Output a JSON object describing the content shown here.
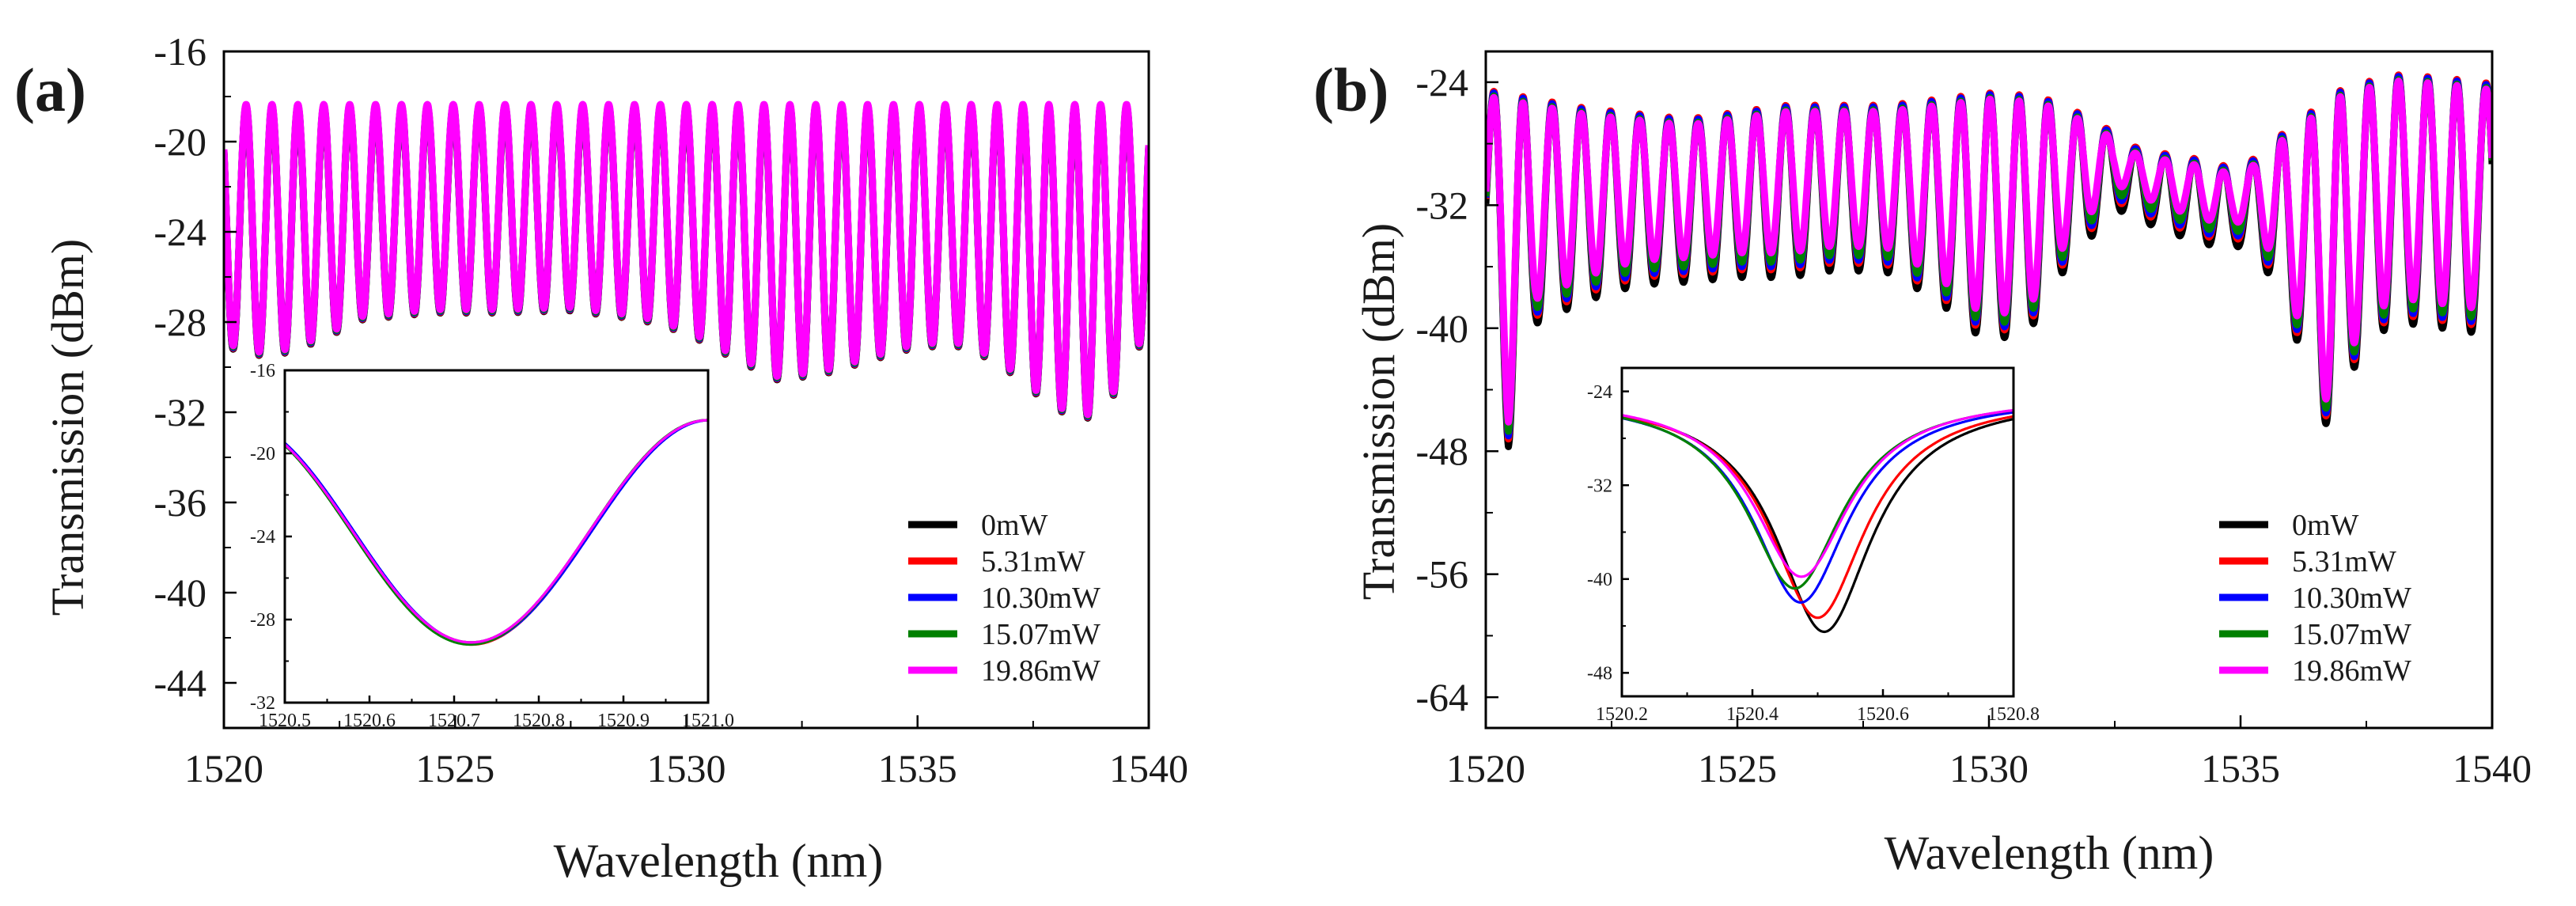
{
  "chart_data": [
    {
      "panel_label": "(a)",
      "type": "line",
      "title": "",
      "xlabel": "Wavelength (nm)",
      "ylabel": "Transmission (dBm)",
      "xlim": [
        1520,
        1540
      ],
      "ylim": [
        -46,
        -16
      ],
      "xticks": [
        "1520",
        "1525",
        "1530",
        "1535",
        "1540"
      ],
      "yticks": [
        "-16",
        "-20",
        "-24",
        "-28",
        "-32",
        "-36",
        "-40",
        "-44"
      ],
      "fringe": {
        "period_nm": 0.56,
        "phase_nm": 1520.2,
        "top_dbm": -18.4
      },
      "dip_depth_points": [
        [
          1520.0,
          -29.0
        ],
        [
          1521.0,
          -29.5
        ],
        [
          1522.0,
          -28.8
        ],
        [
          1523.0,
          -27.8
        ],
        [
          1524.5,
          -27.5
        ],
        [
          1526.0,
          -27.5
        ],
        [
          1527.5,
          -27.4
        ],
        [
          1529.0,
          -27.8
        ],
        [
          1530.0,
          -28.4
        ],
        [
          1531.0,
          -29.5
        ],
        [
          1532.0,
          -30.5
        ],
        [
          1533.0,
          -30.2
        ],
        [
          1534.0,
          -29.6
        ],
        [
          1535.0,
          -29.0
        ],
        [
          1536.0,
          -29.0
        ],
        [
          1536.8,
          -29.8
        ],
        [
          1537.5,
          -31.0
        ],
        [
          1538.2,
          -32.0
        ],
        [
          1538.8,
          -32.2
        ],
        [
          1539.3,
          -31.0
        ],
        [
          1539.8,
          -29.0
        ],
        [
          1540.0,
          -28.0
        ]
      ],
      "series": [
        {
          "name": "0mW",
          "color": "#000000",
          "offset_db": -0.1
        },
        {
          "name": "5.31mW",
          "color": "#ff0000",
          "offset_db": -0.07
        },
        {
          "name": "10.30mW",
          "color": "#0000ff",
          "offset_db": -0.04
        },
        {
          "name": "15.07mW",
          "color": "#008000",
          "offset_db": 0.0
        },
        {
          "name": "19.86mW",
          "color": "#ff00ff",
          "offset_db": 0.05
        }
      ],
      "legend": {
        "position": "bottom-right",
        "entries": [
          "0mW",
          "5.31mW",
          "10.30mW",
          "15.07mW",
          "19.86mW"
        ]
      },
      "inset": {
        "type": "line",
        "xlim": [
          1520.5,
          1521.0
        ],
        "ylim": [
          -32,
          -16
        ],
        "xticks": [
          "1520.5",
          "1520.6",
          "1520.7",
          "1520.8",
          "1520.9",
          "1521.0"
        ],
        "yticks": [
          "-16",
          "-20",
          "-24",
          "-28",
          "-32"
        ],
        "series": [
          {
            "name": "0mW",
            "color": "#000000",
            "dip_nm": 1520.72,
            "min_dbm": -29.1
          },
          {
            "name": "5.31mW",
            "color": "#ff0000",
            "dip_nm": 1520.721,
            "min_dbm": -29.2
          },
          {
            "name": "10.30mW",
            "color": "#0000ff",
            "dip_nm": 1520.722,
            "min_dbm": -29.15
          },
          {
            "name": "15.07mW",
            "color": "#008000",
            "dip_nm": 1520.719,
            "min_dbm": -29.2
          },
          {
            "name": "19.86mW",
            "color": "#ff00ff",
            "dip_nm": 1520.72,
            "min_dbm": -29.1
          }
        ]
      }
    },
    {
      "panel_label": "(b)",
      "type": "line",
      "title": "",
      "xlabel": "Wavelength (nm)",
      "ylabel": "Transmission (dBm)",
      "xlim": [
        1520,
        1540
      ],
      "ylim": [
        -66,
        -22
      ],
      "xticks": [
        "1520",
        "1525",
        "1530",
        "1535",
        "1540"
      ],
      "yticks": [
        "-24",
        "-32",
        "-40",
        "-48",
        "-56",
        "-64"
      ],
      "fringe": {
        "period_nm": 0.58,
        "phase_nm": 1520.45
      },
      "top_points": [
        [
          1520.0,
          -24.6
        ],
        [
          1522.0,
          -25.8
        ],
        [
          1524.0,
          -26.5
        ],
        [
          1526.0,
          -25.6
        ],
        [
          1528.0,
          -25.6
        ],
        [
          1530.0,
          -24.8
        ],
        [
          1531.0,
          -25.0
        ],
        [
          1532.0,
          -26.4
        ],
        [
          1533.0,
          -28.5
        ],
        [
          1534.0,
          -29.0
        ],
        [
          1535.0,
          -29.8
        ],
        [
          1536.0,
          -27.0
        ],
        [
          1537.0,
          -24.6
        ],
        [
          1538.0,
          -23.6
        ],
        [
          1539.0,
          -23.8
        ],
        [
          1540.0,
          -24.2
        ]
      ],
      "dip_depth_points": [
        [
          1520.0,
          -36.0
        ],
        [
          1520.45,
          -46.5
        ],
        [
          1521.0,
          -38.5
        ],
        [
          1522.0,
          -37.0
        ],
        [
          1523.0,
          -36.0
        ],
        [
          1524.0,
          -35.8
        ],
        [
          1525.0,
          -35.5
        ],
        [
          1526.0,
          -35.5
        ],
        [
          1527.0,
          -35.0
        ],
        [
          1528.0,
          -35.2
        ],
        [
          1529.0,
          -37.0
        ],
        [
          1529.6,
          -39.0
        ],
        [
          1530.2,
          -39.5
        ],
        [
          1530.8,
          -39.0
        ],
        [
          1531.5,
          -35.0
        ],
        [
          1532.5,
          -31.0
        ],
        [
          1533.5,
          -32.5
        ],
        [
          1534.5,
          -33.5
        ],
        [
          1535.3,
          -33.5
        ],
        [
          1536.0,
          -38.5
        ],
        [
          1536.8,
          -46.0
        ],
        [
          1537.4,
          -40.0
        ],
        [
          1538.0,
          -38.6
        ],
        [
          1538.8,
          -38.5
        ],
        [
          1539.5,
          -39.5
        ],
        [
          1540.0,
          -37.0
        ]
      ],
      "series": [
        {
          "name": "0mW",
          "color": "#000000",
          "depth_offset_db": -1.2,
          "top_offset_db": 0.0
        },
        {
          "name": "5.31mW",
          "color": "#ff0000",
          "depth_offset_db": -0.7,
          "top_offset_db": 0.1
        },
        {
          "name": "10.30mW",
          "color": "#0000ff",
          "depth_offset_db": -0.5,
          "top_offset_db": 0.0
        },
        {
          "name": "15.07mW",
          "color": "#008000",
          "depth_offset_db": -0.2,
          "top_offset_db": -0.2
        },
        {
          "name": "19.86mW",
          "color": "#ff00ff",
          "depth_offset_db": 0.4,
          "top_offset_db": -0.3
        }
      ],
      "legend": {
        "position": "bottom-right",
        "entries": [
          "0mW",
          "5.31mW",
          "10.30mW",
          "15.07mW",
          "19.86mW"
        ]
      },
      "inset": {
        "type": "line",
        "xlim": [
          1520.2,
          1520.8
        ],
        "ylim": [
          -50,
          -22
        ],
        "xticks": [
          "1520.2",
          "1520.4",
          "1520.6",
          "1520.8"
        ],
        "yticks": [
          "-24",
          "-32",
          "-40",
          "-48"
        ],
        "series": [
          {
            "name": "0mW",
            "color": "#000000",
            "dip_nm": 1520.51,
            "min_dbm": -44.5
          },
          {
            "name": "5.31mW",
            "color": "#ff0000",
            "dip_nm": 1520.5,
            "min_dbm": -43.3
          },
          {
            "name": "10.30mW",
            "color": "#0000ff",
            "dip_nm": 1520.474,
            "min_dbm": -42.0
          },
          {
            "name": "15.07mW",
            "color": "#008000",
            "dip_nm": 1520.465,
            "min_dbm": -40.8
          },
          {
            "name": "19.86mW",
            "color": "#ff00ff",
            "dip_nm": 1520.475,
            "min_dbm": -39.8
          }
        ]
      }
    }
  ]
}
